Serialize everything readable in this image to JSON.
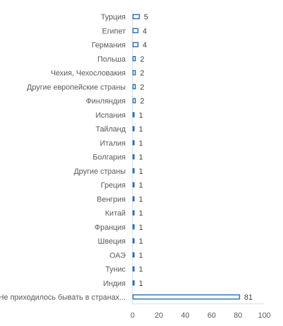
{
  "chart_data": {
    "type": "bar",
    "orientation": "horizontal",
    "categories": [
      "Турция",
      "Египет",
      "Германия",
      "Польша",
      "Чехия, Чехословакия",
      "Другие европейские страны",
      "Финляндия",
      "Испания",
      "Тайланд",
      "Италия",
      "Болгария",
      "Другие страны",
      "Греция",
      "Венгрия",
      "Китай",
      "Франция",
      "Швеция",
      "ОАЭ",
      "Тунис",
      "Индия",
      "Не приходилось бывать в странах..."
    ],
    "values": [
      5,
      4,
      4,
      2,
      2,
      2,
      2,
      1,
      1,
      1,
      1,
      1,
      1,
      1,
      1,
      1,
      1,
      1,
      1,
      1,
      81
    ],
    "value_labels": [
      "5",
      "4",
      "4",
      "2",
      "2",
      "2",
      "2",
      "1",
      "1",
      "1",
      "1",
      "1",
      "1",
      "1",
      "1",
      "1",
      "1",
      "1",
      "1",
      "1",
      "81"
    ],
    "xlim": [
      0,
      100
    ],
    "x_ticks": [
      "0",
      "20",
      "40",
      "60",
      "80",
      "100"
    ],
    "title": "",
    "xlabel": "",
    "ylabel": "",
    "grid": false,
    "legend": "none",
    "colors": {
      "bar_border": "#2e75b6",
      "bar_fill": "#ffffff",
      "axis": "#d9d9d9"
    }
  }
}
